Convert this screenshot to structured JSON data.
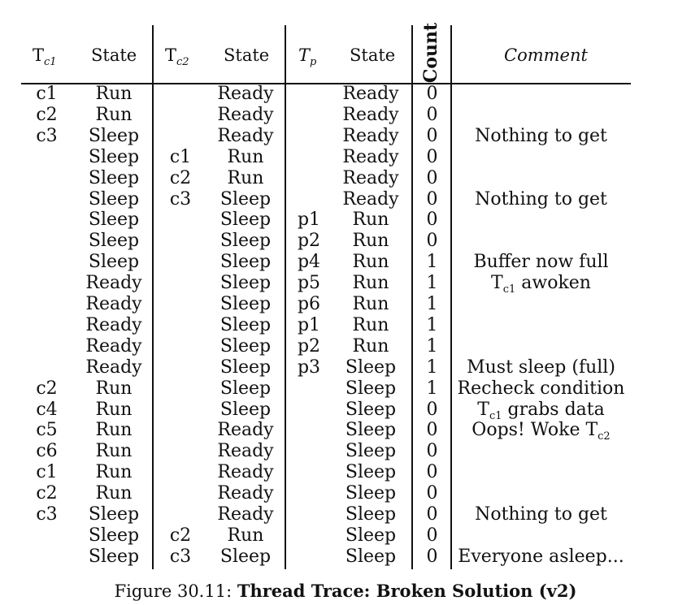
{
  "table": {
    "headers": {
      "tc1_main": "T",
      "tc1_sub": "c1",
      "state1": "State",
      "tc2_main": "T",
      "tc2_sub": "c2",
      "state2": "State",
      "tp_main": "T",
      "tp_sub": "p",
      "state3": "State",
      "count": "Count",
      "comment": "Comment"
    },
    "rows": [
      [
        "c1",
        "Run",
        "",
        "Ready",
        "",
        "Ready",
        "0",
        ""
      ],
      [
        "c2",
        "Run",
        "",
        "Ready",
        "",
        "Ready",
        "0",
        ""
      ],
      [
        "c3",
        "Sleep",
        "",
        "Ready",
        "",
        "Ready",
        "0",
        "Nothing to get"
      ],
      [
        "",
        "Sleep",
        "c1",
        "Run",
        "",
        "Ready",
        "0",
        ""
      ],
      [
        "",
        "Sleep",
        "c2",
        "Run",
        "",
        "Ready",
        "0",
        ""
      ],
      [
        "",
        "Sleep",
        "c3",
        "Sleep",
        "",
        "Ready",
        "0",
        "Nothing to get"
      ],
      [
        "",
        "Sleep",
        "",
        "Sleep",
        "p1",
        "Run",
        "0",
        ""
      ],
      [
        "",
        "Sleep",
        "",
        "Sleep",
        "p2",
        "Run",
        "0",
        ""
      ],
      [
        "",
        "Sleep",
        "",
        "Sleep",
        "p4",
        "Run",
        "1",
        "Buffer now full"
      ],
      [
        "",
        "Ready",
        "",
        "Sleep",
        "p5",
        "Run",
        "1",
        "T_c1 awoken"
      ],
      [
        "",
        "Ready",
        "",
        "Sleep",
        "p6",
        "Run",
        "1",
        ""
      ],
      [
        "",
        "Ready",
        "",
        "Sleep",
        "p1",
        "Run",
        "1",
        ""
      ],
      [
        "",
        "Ready",
        "",
        "Sleep",
        "p2",
        "Run",
        "1",
        ""
      ],
      [
        "",
        "Ready",
        "",
        "Sleep",
        "p3",
        "Sleep",
        "1",
        "Must sleep (full)"
      ],
      [
        "c2",
        "Run",
        "",
        "Sleep",
        "",
        "Sleep",
        "1",
        "Recheck condition"
      ],
      [
        "c4",
        "Run",
        "",
        "Sleep",
        "",
        "Sleep",
        "0",
        "T_c1 grabs data"
      ],
      [
        "c5",
        "Run",
        "",
        "Ready",
        "",
        "Sleep",
        "0",
        "Oops! Woke T_c2"
      ],
      [
        "c6",
        "Run",
        "",
        "Ready",
        "",
        "Sleep",
        "0",
        ""
      ],
      [
        "c1",
        "Run",
        "",
        "Ready",
        "",
        "Sleep",
        "0",
        ""
      ],
      [
        "c2",
        "Run",
        "",
        "Ready",
        "",
        "Sleep",
        "0",
        ""
      ],
      [
        "c3",
        "Sleep",
        "",
        "Ready",
        "",
        "Sleep",
        "0",
        "Nothing to get"
      ],
      [
        "",
        "Sleep",
        "c2",
        "Run",
        "",
        "Sleep",
        "0",
        ""
      ],
      [
        "",
        "Sleep",
        "c3",
        "Sleep",
        "",
        "Sleep",
        "0",
        "Everyone asleep..."
      ]
    ]
  },
  "caption": {
    "label": "Figure 30.11:",
    "title": "Thread Trace: Broken Solution (v2)"
  }
}
